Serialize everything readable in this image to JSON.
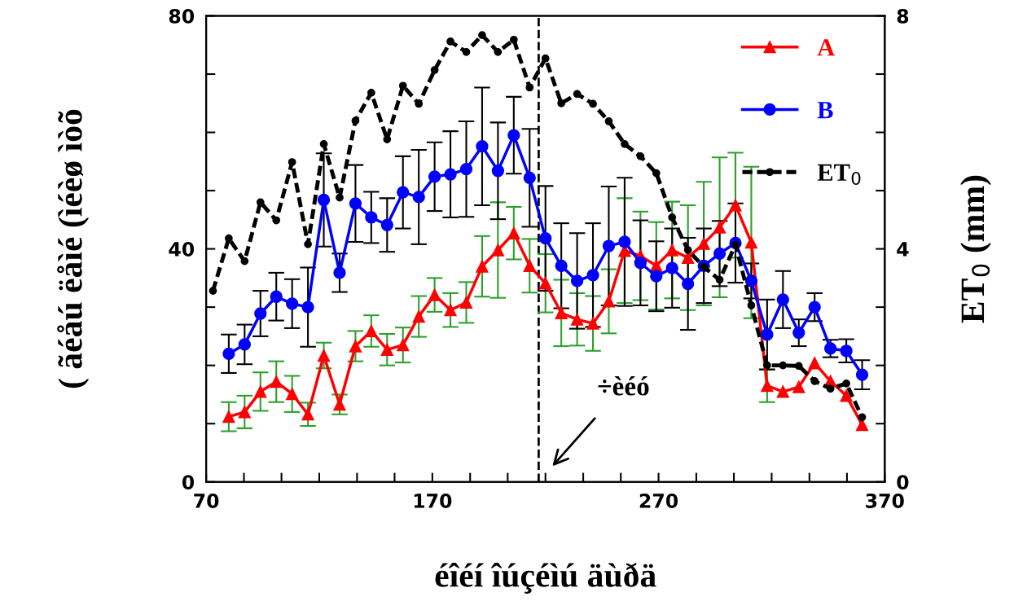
{
  "chart_data": {
    "type": "line",
    "xlabel": "éîéí îúçéìú äùðä",
    "ylabel": "( ãéåú ëåìé (ìéèø ìòõ",
    "y2label": "ET$_{0}$ (mm)",
    "xlim": [
      70,
      370
    ],
    "xticks": [
      70,
      {
        "value": 86.7,
        "label": null
      },
      {
        "value": 103.3,
        "label": null
      },
      {
        "value": 120,
        "label": null
      },
      {
        "value": 136.7,
        "label": null
      },
      {
        "value": 153.3,
        "label": null
      },
      170,
      {
        "value": 186.7,
        "label": null
      },
      {
        "value": 203.3,
        "label": null
      },
      {
        "value": 220,
        "label": null
      },
      {
        "value": 236.7,
        "label": null
      },
      {
        "value": 253.3,
        "label": null
      },
      270,
      {
        "value": 286.7,
        "label": null
      },
      {
        "value": 303.3,
        "label": null
      },
      {
        "value": 320,
        "label": null
      },
      {
        "value": 336.7,
        "label": null
      },
      {
        "value": 353.3,
        "label": null
      },
      370
    ],
    "ylim": [
      0,
      80
    ],
    "yticks": [
      0,
      {
        "value": 10,
        "label": null
      },
      {
        "value": 20,
        "label": null
      },
      {
        "value": 30,
        "label": null
      },
      40,
      {
        "value": 50,
        "label": null
      },
      {
        "value": 60,
        "label": null
      },
      {
        "value": 70,
        "label": null
      },
      80
    ],
    "y2lim": [
      0,
      8
    ],
    "y2ticks": [
      0,
      {
        "value": 1,
        "label": null
      },
      {
        "value": 2,
        "label": null
      },
      {
        "value": 3,
        "label": null
      },
      4,
      {
        "value": 5,
        "label": null
      },
      {
        "value": 6,
        "label": null
      },
      {
        "value": 7,
        "label": null
      },
      8
    ],
    "grid": false,
    "legend": "top right",
    "ref_lines": [
      {
        "axis": "x",
        "value": 217,
        "color": "#000000",
        "line_style": "dashed"
      }
    ],
    "annotations": [
      "÷èéó"
    ],
    "series": [
      {
        "name": "A",
        "color": "#ff0000",
        "marker": "triangle",
        "line_style": "solid",
        "x": [
          80,
          87,
          94,
          101,
          108,
          115,
          122,
          129,
          136,
          143,
          150,
          157,
          164,
          171,
          178,
          185,
          192,
          199,
          206,
          213,
          220,
          227,
          234,
          241,
          248,
          255,
          262,
          269,
          276,
          283,
          290,
          297,
          304,
          311,
          318,
          325,
          332,
          339,
          346,
          353,
          360
        ],
        "values": [
          11.2,
          12.0,
          15.5,
          17.2,
          15.1,
          11.6,
          21.7,
          13.3,
          23.3,
          25.9,
          22.7,
          23.5,
          28.4,
          32.1,
          29.5,
          30.8,
          37.0,
          39.8,
          42.7,
          37.1,
          34.1,
          29.0,
          27.9,
          27.2,
          31.0,
          39.7,
          38.8,
          37.1,
          39.8,
          38.5,
          40.9,
          43.7,
          47.5,
          41.1,
          16.5,
          15.5,
          16.3,
          20.4,
          17.3,
          14.8,
          9.8
        ],
        "errors": [
          2.5,
          2.8,
          3.3,
          3.5,
          3.1,
          2.0,
          2.2,
          1.7,
          2.6,
          2.7,
          2.7,
          3.0,
          3.5,
          2.9,
          2.9,
          3.5,
          5.2,
          8.2,
          4.5,
          4.6,
          5,
          5.7,
          4.5,
          4.7,
          5.5,
          9,
          7.6,
          7.5,
          8.3,
          9,
          10.6,
          12,
          9,
          13,
          2.8,
          null,
          null,
          null,
          null,
          null,
          null
        ]
      },
      {
        "name": "B",
        "color": "#0000ff",
        "marker": "circle",
        "line_style": "solid",
        "x": [
          80,
          87,
          94,
          101,
          108,
          115,
          122,
          129,
          136,
          143,
          150,
          157,
          164,
          171,
          178,
          185,
          192,
          199,
          206,
          213,
          220,
          227,
          234,
          241,
          248,
          255,
          262,
          269,
          276,
          283,
          290,
          297,
          304,
          311,
          318,
          325,
          332,
          339,
          346,
          353,
          360
        ],
        "values": [
          22.0,
          23.6,
          28.9,
          31.8,
          30.6,
          30.0,
          48.4,
          35.9,
          47.8,
          45.4,
          44.1,
          49.7,
          48.9,
          52.4,
          52.8,
          53.7,
          57.6,
          53.4,
          59.5,
          52.2,
          41.8,
          37.1,
          34.5,
          35.5,
          40.5,
          41.2,
          37.6,
          35.3,
          36.7,
          34.0,
          37.1,
          39.2,
          41.0,
          34.5,
          25.3,
          31.3,
          25.6,
          30.0,
          22.9,
          22.5,
          18.4
        ],
        "errors": [
          3.3,
          3.4,
          3.9,
          4.1,
          4.2,
          6.8,
          8.0,
          3.3,
          6.6,
          4.4,
          4.6,
          6.2,
          8.1,
          5.9,
          7.4,
          8.2,
          10.1,
          8.3,
          6.6,
          8.4,
          9.0,
          7.3,
          8.2,
          8.9,
          10.2,
          11.0,
          7.3,
          6.0,
          6.8,
          7.9,
          6.4,
          5.6,
          6.8,
          3,
          6.0,
          4.9,
          2.3,
          2.4,
          1.5,
          2.0,
          2.5
        ]
      },
      {
        "name": "ET$_{0}$",
        "color": "#000000",
        "marker": "circle",
        "line_style": "dashed",
        "axis": "y2",
        "x": [
          73,
          80,
          87,
          94,
          101,
          108,
          115,
          122,
          129,
          136,
          143,
          150,
          157,
          164,
          171,
          178,
          185,
          192,
          199,
          206,
          213,
          220,
          227,
          234,
          241,
          248,
          255,
          262,
          269,
          276,
          283,
          290,
          297,
          304,
          311,
          318,
          325,
          332,
          339,
          346,
          353,
          360
        ],
        "values": [
          3.28,
          4.18,
          3.79,
          4.8,
          4.49,
          5.49,
          4.08,
          5.8,
          4.88,
          6.2,
          6.68,
          5.88,
          6.8,
          6.49,
          7.07,
          7.56,
          7.38,
          7.67,
          7.38,
          7.59,
          6.77,
          7.27,
          6.5,
          6.66,
          6.49,
          6.19,
          5.8,
          5.59,
          5.3,
          4.54,
          3.98,
          3.69,
          3.47,
          4.07,
          3.03,
          2.0,
          2.0,
          1.99,
          1.73,
          1.6,
          1.69,
          1.11
        ]
      }
    ]
  }
}
